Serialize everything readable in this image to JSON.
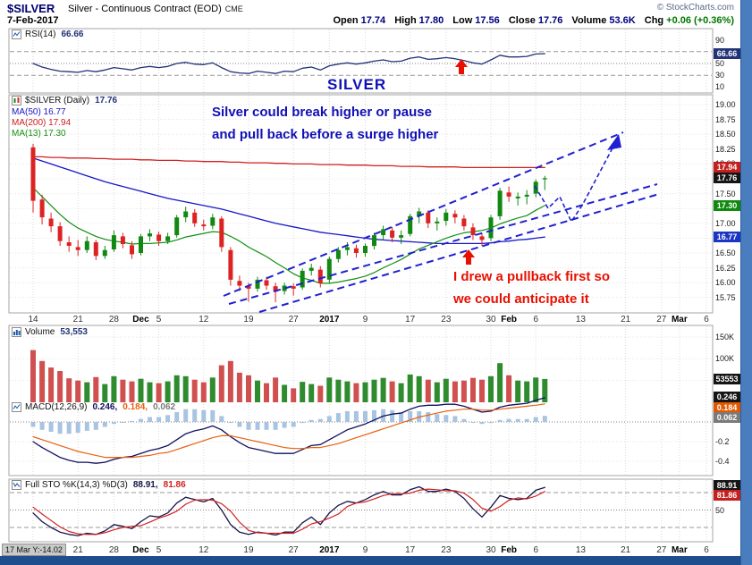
{
  "header": {
    "symbol": "$SILVER",
    "title": "Silver - Continuous Contract (EOD)",
    "exchange": "CME",
    "date": "7-Feb-2017",
    "copyright": "© StockCharts.com",
    "quote": {
      "open_label": "Open",
      "open": "17.74",
      "high_label": "High",
      "high": "17.80",
      "low_label": "Low",
      "low": "17.56",
      "close_label": "Close",
      "close": "17.76",
      "volume_label": "Volume",
      "volume": "53.6K",
      "chg_label": "Chg",
      "chg": "+0.06 (+0.36%)"
    }
  },
  "panels": {
    "rsi": {
      "label": "RSI(14)",
      "value": "66.66"
    },
    "price": {
      "label": "$SILVER (Daily)",
      "value": "17.76",
      "ma50": "MA(50) 16.77",
      "ma200": "MA(200) 17.94",
      "ma13": "MA(13) 17.30"
    },
    "volume": {
      "label": "Volume",
      "value": "53,553"
    },
    "macd": {
      "label": "MACD(12,26,9)",
      "v1": "0.246,",
      "v2": "0.184,",
      "v3": "0.062"
    },
    "sto": {
      "label": "Full STO %K(14,3) %D(3)",
      "v1": "88.91,",
      "v2": "81.86"
    }
  },
  "annotations": {
    "silver": "SILVER",
    "note1a": "Silver could break higher or pause",
    "note1b": "and pull back before a surge higher",
    "note2a": "I drew a pullback first so",
    "note2b": "we could anticipate it"
  },
  "footer": {
    "crosshair": "17 Mar Y:-14.02"
  },
  "chart_data": {
    "type": "candlestick",
    "title": "$SILVER Daily candlesticks with RSI(14), MA(13/50/200), Volume, MACD(12,26,9), Full Stochastics",
    "price_axis_range": [
      15.49,
      19.17
    ],
    "rsi_range": [
      0,
      100
    ],
    "sto_range": [
      0,
      100
    ],
    "volume_range_k": [
      0,
      160
    ],
    "macd_range": [
      -0.55,
      0.3
    ],
    "future_slots": 18,
    "dates": [
      "Nov 14",
      "Nov 15",
      "Nov 16",
      "Nov 17",
      "Nov 18",
      "Nov 21",
      "Nov 22",
      "Nov 23",
      "Nov 25",
      "Nov 28",
      "Nov 29",
      "Nov 30",
      "Dec 1",
      "Dec 2",
      "Dec 5",
      "Dec 6",
      "Dec 7",
      "Dec 8",
      "Dec 9",
      "Dec 12",
      "Dec 13",
      "Dec 14",
      "Dec 15",
      "Dec 16",
      "Dec 19",
      "Dec 20",
      "Dec 21",
      "Dec 22",
      "Dec 23",
      "Dec 27",
      "Dec 28",
      "Dec 29",
      "Dec 30",
      "Jan 3",
      "Jan 4",
      "Jan 5",
      "Jan 6",
      "Jan 9",
      "Jan 10",
      "Jan 11",
      "Jan 12",
      "Jan 13",
      "Jan 17",
      "Jan 18",
      "Jan 19",
      "Jan 20",
      "Jan 23",
      "Jan 24",
      "Jan 25",
      "Jan 26",
      "Jan 27",
      "Jan 30",
      "Jan 31",
      "Feb 1",
      "Feb 2",
      "Feb 3",
      "Feb 6",
      "Feb 7"
    ],
    "ohlc": [
      [
        18.28,
        18.34,
        17.18,
        17.38
      ],
      [
        17.4,
        17.48,
        16.98,
        17.1
      ],
      [
        17.08,
        17.18,
        16.85,
        16.95
      ],
      [
        16.95,
        17.02,
        16.62,
        16.7
      ],
      [
        16.68,
        16.78,
        16.52,
        16.62
      ],
      [
        16.6,
        16.72,
        16.45,
        16.55
      ],
      [
        16.55,
        16.78,
        16.5,
        16.7
      ],
      [
        16.68,
        16.72,
        16.38,
        16.45
      ],
      [
        16.45,
        16.62,
        16.4,
        16.55
      ],
      [
        16.56,
        16.88,
        16.52,
        16.8
      ],
      [
        16.78,
        16.84,
        16.58,
        16.65
      ],
      [
        16.63,
        16.7,
        16.4,
        16.48
      ],
      [
        16.5,
        16.82,
        16.46,
        16.78
      ],
      [
        16.78,
        16.9,
        16.7,
        16.83
      ],
      [
        16.81,
        16.86,
        16.62,
        16.7
      ],
      [
        16.7,
        16.84,
        16.65,
        16.78
      ],
      [
        16.8,
        17.14,
        16.76,
        17.1
      ],
      [
        17.1,
        17.28,
        17.02,
        17.2
      ],
      [
        17.18,
        17.24,
        16.94,
        17.0
      ],
      [
        16.98,
        17.06,
        16.88,
        16.95
      ],
      [
        16.96,
        17.16,
        16.9,
        17.1
      ],
      [
        17.08,
        17.12,
        16.52,
        16.6
      ],
      [
        16.55,
        16.6,
        15.95,
        16.05
      ],
      [
        16.03,
        16.12,
        15.86,
        15.95
      ],
      [
        15.94,
        16.0,
        15.68,
        15.9
      ],
      [
        15.9,
        16.1,
        15.85,
        16.05
      ],
      [
        16.04,
        16.1,
        15.88,
        15.95
      ],
      [
        15.94,
        16.0,
        15.67,
        15.85
      ],
      [
        15.86,
        16.0,
        15.8,
        15.95
      ],
      [
        15.94,
        15.99,
        15.78,
        15.9
      ],
      [
        15.92,
        16.24,
        15.88,
        16.2
      ],
      [
        16.2,
        16.32,
        16.12,
        16.25
      ],
      [
        16.22,
        16.28,
        15.92,
        15.99
      ],
      [
        16.05,
        16.44,
        16.0,
        16.4
      ],
      [
        16.4,
        16.6,
        16.34,
        16.55
      ],
      [
        16.55,
        16.68,
        16.46,
        16.6
      ],
      [
        16.58,
        16.64,
        16.42,
        16.5
      ],
      [
        16.5,
        16.66,
        16.44,
        16.62
      ],
      [
        16.62,
        16.84,
        16.56,
        16.8
      ],
      [
        16.8,
        16.96,
        16.72,
        16.9
      ],
      [
        16.88,
        16.94,
        16.68,
        16.76
      ],
      [
        16.76,
        16.88,
        16.65,
        16.8
      ],
      [
        16.82,
        17.16,
        16.78,
        17.12
      ],
      [
        17.12,
        17.26,
        17.0,
        17.2
      ],
      [
        17.18,
        17.22,
        16.92,
        17.0
      ],
      [
        17.0,
        17.1,
        16.88,
        17.03
      ],
      [
        17.04,
        17.24,
        16.96,
        17.18
      ],
      [
        17.16,
        17.22,
        17.0,
        17.1
      ],
      [
        17.08,
        17.14,
        16.88,
        16.95
      ],
      [
        16.93,
        17.0,
        16.72,
        16.8
      ],
      [
        16.78,
        16.84,
        16.62,
        16.72
      ],
      [
        16.75,
        17.14,
        16.7,
        17.1
      ],
      [
        17.12,
        17.6,
        17.06,
        17.55
      ],
      [
        17.52,
        17.62,
        17.36,
        17.45
      ],
      [
        17.42,
        17.52,
        17.3,
        17.45
      ],
      [
        17.45,
        17.56,
        17.32,
        17.48
      ],
      [
        17.5,
        17.74,
        17.44,
        17.7
      ],
      [
        17.74,
        17.8,
        17.56,
        17.76
      ]
    ],
    "volume_k": [
      120,
      95,
      80,
      72,
      55,
      50,
      46,
      58,
      42,
      60,
      52,
      48,
      54,
      46,
      44,
      48,
      62,
      60,
      52,
      46,
      57,
      85,
      95,
      68,
      62,
      50,
      44,
      57,
      40,
      32,
      47,
      42,
      38,
      57,
      52,
      48,
      44,
      46,
      52,
      56,
      48,
      44,
      64,
      60,
      52,
      46,
      54,
      48,
      50,
      56,
      52,
      60,
      90,
      62,
      50,
      48,
      57,
      53.553
    ],
    "rsi14": [
      50,
      44,
      40,
      37,
      36,
      35,
      38,
      36,
      39,
      43,
      41,
      39,
      43,
      45,
      43,
      45,
      50,
      52,
      49,
      48,
      51,
      43,
      36,
      34,
      33,
      37,
      35,
      33,
      37,
      36,
      42,
      44,
      39,
      46,
      49,
      51,
      49,
      51,
      54,
      56,
      53,
      54,
      59,
      61,
      57,
      58,
      60,
      58,
      55,
      51,
      49,
      56,
      64,
      61,
      61,
      62,
      66,
      66.66
    ],
    "ma13": [
      17.6,
      17.45,
      17.3,
      17.15,
      17.02,
      16.92,
      16.85,
      16.78,
      16.73,
      16.7,
      16.68,
      16.65,
      16.66,
      16.66,
      16.67,
      16.68,
      16.72,
      16.77,
      16.8,
      16.83,
      16.86,
      16.85,
      16.78,
      16.7,
      16.6,
      16.52,
      16.44,
      16.34,
      16.25,
      16.15,
      16.08,
      16.04,
      15.99,
      15.99,
      16.01,
      16.04,
      16.07,
      16.11,
      16.17,
      16.25,
      16.32,
      16.39,
      16.48,
      16.57,
      16.63,
      16.69,
      16.75,
      16.8,
      16.84,
      16.86,
      16.88,
      16.92,
      16.99,
      17.04,
      17.09,
      17.13,
      17.22,
      17.3
    ],
    "ma50": [
      18.1,
      18.05,
      18.0,
      17.95,
      17.9,
      17.85,
      17.8,
      17.75,
      17.7,
      17.66,
      17.62,
      17.58,
      17.54,
      17.5,
      17.46,
      17.42,
      17.39,
      17.36,
      17.33,
      17.3,
      17.27,
      17.24,
      17.2,
      17.16,
      17.12,
      17.08,
      17.04,
      17.0,
      16.97,
      16.94,
      16.91,
      16.88,
      16.85,
      16.83,
      16.81,
      16.79,
      16.77,
      16.75,
      16.73,
      16.72,
      16.71,
      16.7,
      16.69,
      16.68,
      16.67,
      16.66,
      16.66,
      16.66,
      16.66,
      16.66,
      16.66,
      16.67,
      16.69,
      16.7,
      16.72,
      16.73,
      16.75,
      16.77
    ],
    "ma200": [
      18.12,
      18.12,
      18.11,
      18.11,
      18.1,
      18.1,
      18.1,
      18.09,
      18.09,
      18.08,
      18.08,
      18.08,
      18.07,
      18.07,
      18.06,
      18.06,
      18.06,
      18.05,
      18.05,
      18.04,
      18.04,
      18.04,
      18.03,
      18.03,
      18.02,
      18.02,
      18.02,
      18.01,
      18.01,
      18.0,
      18.0,
      18.0,
      17.99,
      17.99,
      17.99,
      17.98,
      17.98,
      17.98,
      17.97,
      17.97,
      17.97,
      17.96,
      17.96,
      17.96,
      17.95,
      17.95,
      17.95,
      17.95,
      17.94,
      17.94,
      17.94,
      17.94,
      17.94,
      17.94,
      17.94,
      17.94,
      17.94,
      17.94
    ],
    "macd_line": [
      -0.2,
      -0.26,
      -0.31,
      -0.36,
      -0.39,
      -0.41,
      -0.41,
      -0.42,
      -0.41,
      -0.38,
      -0.36,
      -0.35,
      -0.32,
      -0.29,
      -0.27,
      -0.24,
      -0.18,
      -0.12,
      -0.09,
      -0.07,
      -0.04,
      -0.08,
      -0.15,
      -0.21,
      -0.26,
      -0.28,
      -0.3,
      -0.32,
      -0.32,
      -0.32,
      -0.28,
      -0.24,
      -0.23,
      -0.18,
      -0.13,
      -0.08,
      -0.05,
      -0.02,
      0.02,
      0.06,
      0.08,
      0.09,
      0.13,
      0.16,
      0.17,
      0.17,
      0.18,
      0.18,
      0.16,
      0.13,
      0.1,
      0.11,
      0.15,
      0.17,
      0.18,
      0.19,
      0.22,
      0.246
    ],
    "macd_signal": [
      -0.15,
      -0.18,
      -0.21,
      -0.24,
      -0.27,
      -0.3,
      -0.32,
      -0.34,
      -0.36,
      -0.36,
      -0.36,
      -0.36,
      -0.35,
      -0.34,
      -0.32,
      -0.31,
      -0.28,
      -0.25,
      -0.22,
      -0.19,
      -0.16,
      -0.14,
      -0.14,
      -0.16,
      -0.18,
      -0.2,
      -0.22,
      -0.24,
      -0.26,
      -0.27,
      -0.27,
      -0.26,
      -0.26,
      -0.24,
      -0.22,
      -0.19,
      -0.16,
      -0.13,
      -0.1,
      -0.07,
      -0.04,
      -0.01,
      0.02,
      0.05,
      0.07,
      0.09,
      0.11,
      0.12,
      0.13,
      0.13,
      0.12,
      0.12,
      0.13,
      0.14,
      0.15,
      0.16,
      0.17,
      0.184
    ],
    "sto_k": [
      45,
      30,
      20,
      12,
      8,
      6,
      10,
      8,
      14,
      25,
      22,
      18,
      30,
      40,
      38,
      45,
      62,
      72,
      68,
      64,
      70,
      50,
      25,
      12,
      8,
      12,
      10,
      7,
      12,
      12,
      28,
      38,
      25,
      45,
      58,
      65,
      62,
      68,
      76,
      82,
      76,
      76,
      85,
      90,
      82,
      82,
      86,
      82,
      70,
      52,
      38,
      55,
      75,
      70,
      68,
      70,
      84,
      88.91
    ],
    "sto_d": [
      55,
      43,
      32,
      21,
      13,
      9,
      8,
      8,
      11,
      16,
      20,
      22,
      23,
      29,
      36,
      41,
      48,
      60,
      67,
      68,
      67,
      61,
      48,
      29,
      15,
      11,
      10,
      10,
      10,
      10,
      17,
      26,
      30,
      36,
      43,
      56,
      62,
      64,
      69,
      75,
      78,
      78,
      79,
      84,
      86,
      85,
      83,
      83,
      79,
      68,
      53,
      48,
      56,
      67,
      71,
      69,
      74,
      81.86
    ],
    "axes": {
      "price_ticks": [
        "19.00",
        "18.75",
        "18.50",
        "18.25",
        "18.00",
        "17.50",
        "17.00",
        "16.50",
        "16.25",
        "16.00",
        "15.75"
      ],
      "price_boxes": [
        {
          "text": "17.94",
          "bg": "#c42020"
        },
        {
          "text": "17.76",
          "bg": "#151515"
        },
        {
          "text": "17.30",
          "bg": "#0e8a0e"
        },
        {
          "text": "16.77",
          "bg": "#1b35c4"
        }
      ],
      "rsi_ticks": [
        "90",
        "70",
        "50",
        "30",
        "10"
      ],
      "rsi_box": {
        "text": "66.66",
        "bg": "#223377"
      },
      "volume_ticks": [
        {
          "label": "150K",
          "v": 150
        },
        {
          "label": "100K",
          "v": 100
        }
      ],
      "volume_box": {
        "text": "53553",
        "bg": "#151515"
      },
      "macd_ticks": [
        {
          "label": "-0.2",
          "v": -0.2
        },
        {
          "label": "-0.4",
          "v": -0.4
        }
      ],
      "macd_boxes": [
        {
          "text": "0.246",
          "bg": "#151515"
        },
        {
          "text": "0.184",
          "bg": "#e05800"
        },
        {
          "text": "0.062",
          "bg": "#7a7a7a"
        }
      ],
      "sto_ticks": [
        {
          "label": "50",
          "v": 50
        }
      ],
      "sto_boxes": [
        {
          "text": "88.91",
          "bg": "#151515"
        },
        {
          "text": "81.86",
          "bg": "#c42020"
        }
      ],
      "x_ticks": [
        {
          "i": 0,
          "label": "14",
          "b": 0
        },
        {
          "i": 5,
          "label": "21",
          "b": 0
        },
        {
          "i": 9,
          "label": "28",
          "b": 0
        },
        {
          "i": 12,
          "label": "Dec",
          "b": 1
        },
        {
          "i": 14,
          "label": "5",
          "b": 0
        },
        {
          "i": 19,
          "label": "12",
          "b": 0
        },
        {
          "i": 24,
          "label": "19",
          "b": 0
        },
        {
          "i": 29,
          "label": "27",
          "b": 0
        },
        {
          "i": 33,
          "label": "2017",
          "b": 1
        },
        {
          "i": 37,
          "label": "9",
          "b": 0
        },
        {
          "i": 42,
          "label": "17",
          "b": 0
        },
        {
          "i": 46,
          "label": "23",
          "b": 0
        },
        {
          "i": 51,
          "label": "30",
          "b": 0
        },
        {
          "i": 53,
          "label": "Feb",
          "b": 1
        },
        {
          "i": 56,
          "label": "6",
          "b": 0
        },
        {
          "i": 61,
          "label": "13",
          "b": 0
        },
        {
          "i": 66,
          "label": "21",
          "b": 0
        },
        {
          "i": 70,
          "label": "27",
          "b": 0
        },
        {
          "i": 72,
          "label": "Mar",
          "b": 1
        },
        {
          "i": 75,
          "label": "6",
          "b": 0
        }
      ]
    },
    "colors": {
      "candle_up": "#118811",
      "candle_down": "#dd2222",
      "vol_up": "#2e8b2e",
      "vol_down": "#d05050",
      "ma13": "#129012",
      "ma50": "#1515c8",
      "ma200": "#d02020",
      "rsi": "#223377",
      "macd_line": "#101060",
      "macd_signal": "#e86010",
      "macd_hist": "#a8c4e0",
      "sto_k": "#15154a",
      "sto_d": "#d02020",
      "trendline": "#2020d0",
      "annotation_blue": "#1010b8",
      "annotation_red": "#e81000",
      "muted": "#7a7a7a"
    }
  }
}
